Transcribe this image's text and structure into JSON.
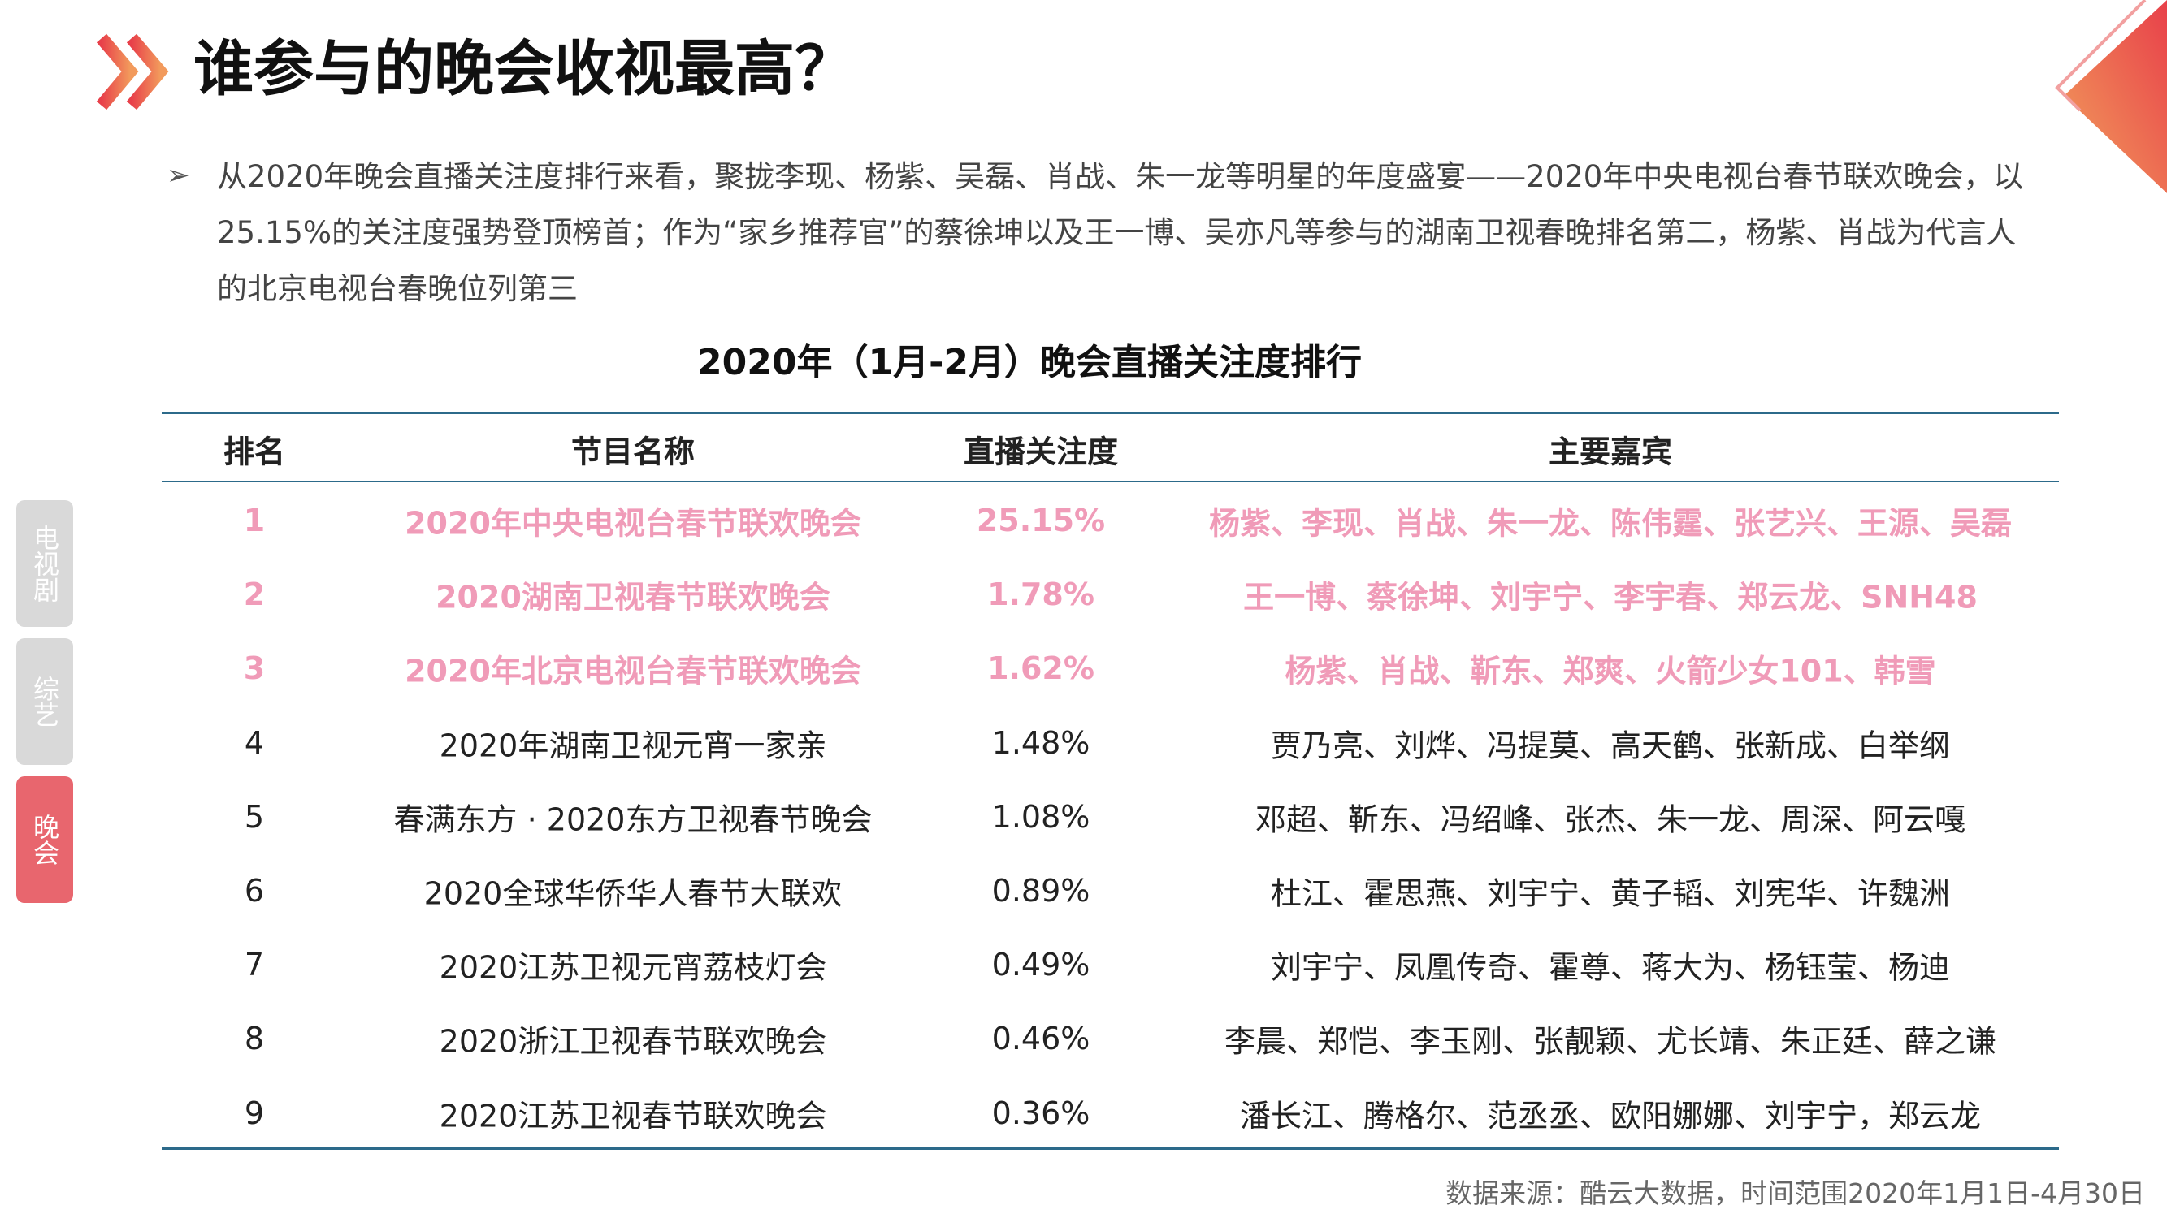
{
  "header": {
    "title": "谁参与的晚会收视最高？"
  },
  "summary": "从2020年晚会直播关注度排行来看，聚拢李现、杨紫、吴磊、肖战、朱一龙等明星的年度盛宴——2020年中央电视台春节联欢晚会，以25.15%的关注度强势登顶榜首；作为“家乡推荐官”的蔡徐坤以及王一博、吴亦凡等参与的湖南卫视春晚排名第二，杨紫、肖战为代言人的北京电视台春晚位列第三",
  "side_tabs": [
    "电视剧",
    "综艺",
    "晚会"
  ],
  "table": {
    "title": "2020年（1月-2月）晚会直播关注度排行",
    "columns": [
      "排名",
      "节目名称",
      "直播关注度",
      "主要嘉宾"
    ],
    "rows": [
      [
        "1",
        "2020年中央电视台春节联欢晚会",
        "25.15%",
        "杨紫、李现、肖战、朱一龙、陈伟霆、张艺兴、王源、吴磊"
      ],
      [
        "2",
        "2020湖南卫视春节联欢晚会",
        "1.78%",
        "王一博、蔡徐坤、刘宇宁、李宇春、郑云龙、SNH48"
      ],
      [
        "3",
        "2020年北京电视台春节联欢晚会",
        "1.62%",
        "杨紫、肖战、靳东、郑爽、火箭少女101、韩雪"
      ],
      [
        "4",
        "2020年湖南卫视元宵一家亲",
        "1.48%",
        "贾乃亮、刘烨、冯提莫、高天鹤、张新成、白举纲"
      ],
      [
        "5",
        "春满东方 · 2020东方卫视春节晚会",
        "1.08%",
        "邓超、靳东、冯绍峰、张杰、朱一龙、周深、阿云嘎"
      ],
      [
        "6",
        "2020全球华侨华人春节大联欢",
        "0.89%",
        "杜江、霍思燕、刘宇宁、黄子韬、刘宪华、许魏洲"
      ],
      [
        "7",
        "2020江苏卫视元宵荔枝灯会",
        "0.49%",
        "刘宇宁、凤凰传奇、霍尊、蒋大为、杨钰莹、杨迪"
      ],
      [
        "8",
        "2020浙江卫视春节联欢晚会",
        "0.46%",
        "李晨、郑恺、李玉刚、张靓颖、尤长靖、朱正廷、薛之谦"
      ],
      [
        "9",
        "2020江苏卫视春节联欢晚会",
        "0.36%",
        "潘长江、腾格尔、范丞丞、欧阳娜娜、刘宇宁，郑云龙"
      ]
    ]
  },
  "source": "数据来源：酷云大数据，时间范围2020年1月1日-4月30日"
}
